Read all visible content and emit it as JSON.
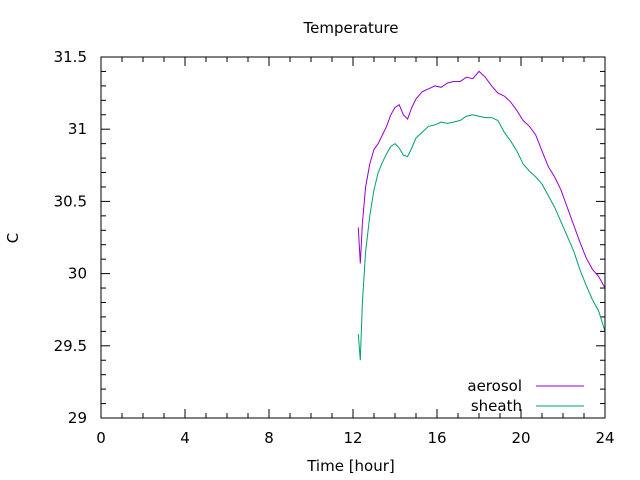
{
  "chart_data": {
    "type": "line",
    "title": "Temperature",
    "xlabel": "Time [hour]",
    "ylabel": "C",
    "xlim": [
      0,
      24
    ],
    "ylim": [
      29,
      31.5
    ],
    "xticks": [
      0,
      4,
      8,
      12,
      16,
      20,
      24
    ],
    "xtick_labels": [
      "0",
      "4",
      "8",
      "12",
      "16",
      "20",
      "24"
    ],
    "yticks": [
      29,
      29.5,
      30,
      30.5,
      31,
      31.5
    ],
    "ytick_labels": [
      "29",
      "29.5",
      "30",
      "30.5",
      "31",
      "31.5"
    ],
    "grid": false,
    "legend_position": "bottom-right",
    "series": [
      {
        "name": "aerosol",
        "color": "#9400d3",
        "x": [
          12.25,
          12.35,
          12.45,
          12.6,
          12.8,
          13.0,
          13.2,
          13.4,
          13.6,
          13.8,
          14.0,
          14.2,
          14.4,
          14.6,
          14.8,
          15.0,
          15.3,
          15.6,
          15.9,
          16.2,
          16.5,
          16.8,
          17.1,
          17.4,
          17.7,
          18.0,
          18.3,
          18.6,
          18.9,
          19.2,
          19.5,
          19.8,
          20.1,
          20.4,
          20.7,
          21.0,
          21.3,
          21.6,
          21.9,
          22.2,
          22.5,
          22.8,
          23.1,
          23.4,
          23.7,
          24.0
        ],
        "y": [
          30.32,
          30.07,
          30.35,
          30.6,
          30.76,
          30.86,
          30.9,
          30.96,
          31.02,
          31.1,
          31.15,
          31.17,
          31.1,
          31.07,
          31.15,
          31.21,
          31.26,
          31.28,
          31.3,
          31.29,
          31.32,
          31.33,
          31.33,
          31.36,
          31.35,
          31.4,
          31.36,
          31.3,
          31.25,
          31.23,
          31.19,
          31.13,
          31.06,
          31.02,
          30.96,
          30.85,
          30.74,
          30.67,
          30.58,
          30.46,
          30.34,
          30.22,
          30.11,
          30.03,
          29.98,
          29.9
        ]
      },
      {
        "name": "sheath",
        "color": "#009e73",
        "x": [
          12.25,
          12.35,
          12.45,
          12.6,
          12.8,
          13.0,
          13.2,
          13.4,
          13.6,
          13.8,
          14.0,
          14.2,
          14.4,
          14.6,
          14.8,
          15.0,
          15.3,
          15.6,
          15.9,
          16.2,
          16.5,
          16.8,
          17.1,
          17.4,
          17.7,
          18.0,
          18.3,
          18.6,
          18.9,
          19.2,
          19.5,
          19.8,
          20.1,
          20.4,
          20.7,
          21.0,
          21.3,
          21.6,
          21.9,
          22.2,
          22.5,
          22.8,
          23.1,
          23.4,
          23.7,
          24.0
        ],
        "y": [
          29.58,
          29.4,
          29.8,
          30.15,
          30.4,
          30.58,
          30.7,
          30.77,
          30.83,
          30.88,
          30.9,
          30.87,
          30.82,
          30.81,
          30.87,
          30.94,
          30.98,
          31.02,
          31.03,
          31.05,
          31.04,
          31.05,
          31.06,
          31.09,
          31.1,
          31.09,
          31.08,
          31.08,
          31.06,
          30.98,
          30.92,
          30.85,
          30.76,
          30.71,
          30.67,
          30.62,
          30.54,
          30.46,
          30.36,
          30.26,
          30.16,
          30.03,
          29.92,
          29.82,
          29.74,
          29.6
        ]
      }
    ]
  }
}
